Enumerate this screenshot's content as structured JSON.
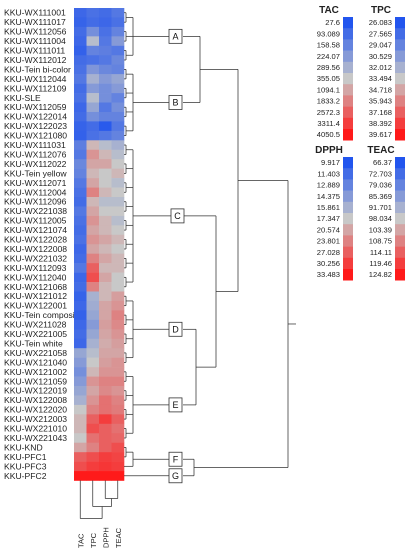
{
  "chart_data": {
    "type": "heatmap",
    "title": "",
    "rows": [
      "KKU-WX111001",
      "KKU-WX111017",
      "KKU-WX112056",
      "KKU-WX111004",
      "KKU-WX111011",
      "KKU-WX112012",
      "KKU-Tein bi-color",
      "KKU-WX112044",
      "KKU-WX112109",
      "KKU-SLE",
      "KKU-WX112059",
      "KKU-WX122014",
      "KKU-WX122023",
      "KKU-WX121080",
      "KKU-WX111031",
      "KKU-WX112076",
      "KKU-WX112022",
      "KKU-Tein yellow",
      "KKU-WX112071",
      "KKU-WX112004",
      "KKU-WX112096",
      "KKU-WX221038",
      "KKU-WX112005",
      "KKU-WX121074",
      "KKU-WX122028",
      "KKU-WX122008",
      "KKU-WX221032",
      "KKU-WX112093",
      "KKU-WX112040",
      "KKU-WX121068",
      "KKU-WX121012",
      "KKU-WX122001",
      "KKU-Tein composite",
      "KKU-WX211028",
      "KKU-WX221005",
      "KKU-Tein white",
      "KKU-WX221058",
      "KKU-WX121040",
      "KKU-WX121002",
      "KKU-WX121059",
      "KKU-WX122019",
      "KKU-WX122008",
      "KKU-WX122020",
      "KKU-WX212003",
      "KKU-WX221010",
      "KKU-WX221043",
      "KKU-KND",
      "KKU-PFC1",
      "KKU-PFC3",
      "KKU-PFC2"
    ],
    "columns": [
      "TAC",
      "TPC",
      "DPPH",
      "TEAC"
    ],
    "values": [
      [
        0.08,
        0.12,
        0.1,
        0.15
      ],
      [
        0.06,
        0.1,
        0.08,
        0.12
      ],
      [
        0.1,
        0.25,
        0.12,
        0.2
      ],
      [
        0.08,
        0.45,
        0.15,
        0.3
      ],
      [
        0.05,
        0.2,
        0.18,
        0.15
      ],
      [
        0.1,
        0.12,
        0.15,
        0.22
      ],
      [
        0.12,
        0.28,
        0.22,
        0.2
      ],
      [
        0.15,
        0.4,
        0.3,
        0.35
      ],
      [
        0.1,
        0.3,
        0.25,
        0.3
      ],
      [
        0.12,
        0.45,
        0.25,
        0.2
      ],
      [
        0.08,
        0.35,
        0.15,
        0.25
      ],
      [
        0.1,
        0.25,
        0.2,
        0.2
      ],
      [
        0.06,
        0.1,
        0.02,
        0.15
      ],
      [
        0.05,
        0.12,
        0.15,
        0.2
      ],
      [
        0.18,
        0.55,
        0.45,
        0.4
      ],
      [
        0.15,
        0.65,
        0.55,
        0.45
      ],
      [
        0.22,
        0.6,
        0.6,
        0.5
      ],
      [
        0.2,
        0.55,
        0.5,
        0.55
      ],
      [
        0.15,
        0.6,
        0.5,
        0.45
      ],
      [
        0.12,
        0.7,
        0.55,
        0.5
      ],
      [
        0.1,
        0.55,
        0.45,
        0.45
      ],
      [
        0.15,
        0.6,
        0.5,
        0.5
      ],
      [
        0.12,
        0.65,
        0.55,
        0.45
      ],
      [
        0.1,
        0.6,
        0.55,
        0.5
      ],
      [
        0.12,
        0.65,
        0.6,
        0.55
      ],
      [
        0.08,
        0.6,
        0.55,
        0.5
      ],
      [
        0.1,
        0.7,
        0.6,
        0.55
      ],
      [
        0.15,
        0.8,
        0.55,
        0.55
      ],
      [
        0.08,
        0.85,
        0.6,
        0.5
      ],
      [
        0.1,
        0.7,
        0.55,
        0.5
      ],
      [
        0.06,
        0.4,
        0.55,
        0.62
      ],
      [
        0.08,
        0.38,
        0.6,
        0.65
      ],
      [
        0.05,
        0.35,
        0.6,
        0.7
      ],
      [
        0.08,
        0.3,
        0.62,
        0.68
      ],
      [
        0.1,
        0.35,
        0.6,
        0.65
      ],
      [
        0.08,
        0.4,
        0.58,
        0.62
      ],
      [
        0.35,
        0.45,
        0.6,
        0.6
      ],
      [
        0.3,
        0.5,
        0.62,
        0.65
      ],
      [
        0.25,
        0.55,
        0.65,
        0.65
      ],
      [
        0.3,
        0.65,
        0.7,
        0.7
      ],
      [
        0.35,
        0.6,
        0.68,
        0.65
      ],
      [
        0.4,
        0.65,
        0.75,
        0.7
      ],
      [
        0.5,
        0.7,
        0.75,
        0.72
      ],
      [
        0.55,
        0.8,
        0.9,
        0.8
      ],
      [
        0.55,
        0.85,
        0.8,
        0.75
      ],
      [
        0.5,
        0.75,
        0.8,
        0.78
      ],
      [
        0.6,
        0.7,
        0.8,
        0.85
      ],
      [
        0.8,
        0.85,
        0.9,
        0.88
      ],
      [
        0.85,
        0.9,
        0.92,
        0.9
      ],
      [
        1.0,
        1.0,
        1.0,
        1.0
      ]
    ],
    "clusters": [
      {
        "label": "A",
        "rows": [
          0,
          5
        ]
      },
      {
        "label": "B",
        "rows": [
          6,
          13
        ]
      },
      {
        "label": "C",
        "rows": [
          14,
          29
        ]
      },
      {
        "label": "D",
        "rows": [
          30,
          37
        ]
      },
      {
        "label": "E",
        "rows": [
          38,
          45
        ]
      },
      {
        "label": "F",
        "rows": [
          46,
          48
        ]
      },
      {
        "label": "G",
        "rows": [
          49,
          49
        ]
      }
    ],
    "legends": [
      {
        "name": "TAC",
        "values": [
          "27.6",
          "93.089",
          "158.58",
          "224.07",
          "289.56",
          "355.05",
          "1094.1",
          "1833.2",
          "2572.3",
          "3311.4",
          "4050.5"
        ]
      },
      {
        "name": "TPC",
        "values": [
          "26.083",
          "27.565",
          "29.047",
          "30.529",
          "32.012",
          "33.494",
          "34.718",
          "35.943",
          "37.168",
          "38.392",
          "39.617"
        ]
      },
      {
        "name": "DPPH",
        "values": [
          "9.917",
          "11.403",
          "12.889",
          "14.375",
          "15.861",
          "17.347",
          "20.574",
          "23.801",
          "27.028",
          "30.256",
          "33.483"
        ]
      },
      {
        "name": "TEAC",
        "values": [
          "66.37",
          "72.703",
          "79.036",
          "85.369",
          "91.701",
          "98.034",
          "103.39",
          "108.75",
          "114.11",
          "119.46",
          "124.82"
        ]
      }
    ],
    "color_scale": {
      "low": "#2255ee",
      "mid": "#c8c8c8",
      "high": "#ff1a1a"
    }
  }
}
